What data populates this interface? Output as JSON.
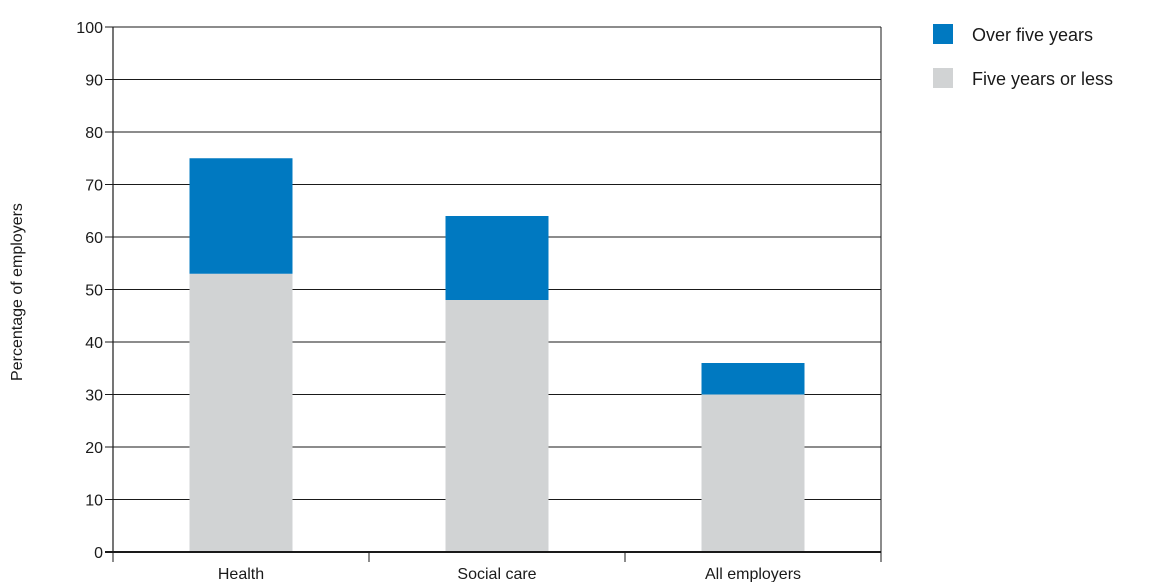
{
  "chart_data": {
    "type": "bar",
    "stacked": true,
    "title": "",
    "xlabel": "",
    "ylabel": "Percentage of employers",
    "ylim": [
      0,
      100
    ],
    "yticks": [
      0,
      10,
      20,
      30,
      40,
      50,
      60,
      70,
      80,
      90,
      100
    ],
    "grid": true,
    "legend_position": "top-right",
    "categories": [
      "Health",
      "Social care",
      "All employers"
    ],
    "series": [
      {
        "name": "Five years or less",
        "color": "#d1d3d4",
        "values": [
          53,
          48,
          30
        ]
      },
      {
        "name": "Over five years",
        "color": "#0079c1",
        "values": [
          22,
          16,
          6
        ]
      }
    ],
    "legend_order": [
      "Over five years",
      "Five years or less"
    ]
  }
}
